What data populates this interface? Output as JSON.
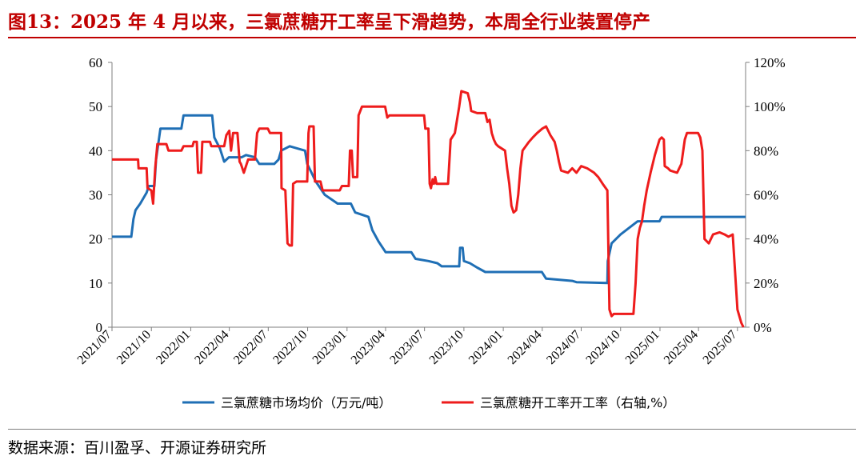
{
  "title": "图13：2025 年 4 月以来，三氯蔗糖开工率呈下滑趋势，本周全行业装置停产",
  "source": "数据来源：百川盈孚、开源证券研究所",
  "colors": {
    "title": "#c00000",
    "price": "#1f6fb5",
    "rate": "#ee1c1c",
    "axis": "#7f7f7f"
  },
  "chart_data": {
    "type": "line",
    "title": "",
    "xlabel": "",
    "ylabel": "",
    "y2label": "",
    "x_ticks": [
      "2021/07",
      "2021/10",
      "2022/01",
      "2022/04",
      "2022/07",
      "2022/10",
      "2023/01",
      "2023/04",
      "2023/07",
      "2023/10",
      "2024/01",
      "2024/04",
      "2024/07",
      "2024/10",
      "2025/01",
      "2025/04",
      "2025/07"
    ],
    "xlim": [
      "2021/07/01",
      "2025/07/20"
    ],
    "y_left": {
      "ticks": [
        "0",
        "10",
        "20",
        "30",
        "40",
        "50",
        "60"
      ],
      "ylim": [
        0,
        60
      ]
    },
    "y_right": {
      "ticks": [
        "0%",
        "20%",
        "40%",
        "60%",
        "80%",
        "100%",
        "120%"
      ],
      "ylim": [
        0,
        120
      ]
    },
    "grid": false,
    "legend": "bottom",
    "series": [
      {
        "name": "三氯蔗糖市场均价（万元/吨）",
        "axis": "left",
        "points": [
          [
            "2021-07-01",
            20.5
          ],
          [
            "2021-08-15",
            20.5
          ],
          [
            "2021-08-20",
            24.5
          ],
          [
            "2021-08-25",
            26.5
          ],
          [
            "2021-09-05",
            28
          ],
          [
            "2021-09-20",
            30.5
          ],
          [
            "2021-09-25",
            32
          ],
          [
            "2021-10-08",
            32
          ],
          [
            "2021-10-12",
            38
          ],
          [
            "2021-10-22",
            45
          ],
          [
            "2021-12-10",
            45
          ],
          [
            "2021-12-15",
            48
          ],
          [
            "2022-02-20",
            48
          ],
          [
            "2022-02-25",
            43
          ],
          [
            "2022-03-10",
            40.5
          ],
          [
            "2022-03-20",
            37.5
          ],
          [
            "2022-03-31",
            38.5
          ],
          [
            "2022-04-30",
            38.5
          ],
          [
            "2022-05-10",
            39
          ],
          [
            "2022-05-31",
            38.5
          ],
          [
            "2022-06-10",
            37
          ],
          [
            "2022-07-15",
            37
          ],
          [
            "2022-07-25",
            38
          ],
          [
            "2022-07-31",
            40
          ],
          [
            "2022-08-20",
            41
          ],
          [
            "2022-09-25",
            40
          ],
          [
            "2022-09-30",
            37
          ],
          [
            "2022-10-10",
            35
          ],
          [
            "2022-10-20",
            33
          ],
          [
            "2022-11-10",
            30
          ],
          [
            "2022-12-10",
            28
          ],
          [
            "2023-01-10",
            28
          ],
          [
            "2023-01-20",
            26
          ],
          [
            "2023-02-20",
            25
          ],
          [
            "2023-03-01",
            22
          ],
          [
            "2023-03-15",
            19.5
          ],
          [
            "2023-04-01",
            17
          ],
          [
            "2023-05-31",
            17
          ],
          [
            "2023-06-10",
            15.5
          ],
          [
            "2023-07-10",
            15
          ],
          [
            "2023-07-31",
            14.5
          ],
          [
            "2023-08-10",
            13.8
          ],
          [
            "2023-09-20",
            13.8
          ],
          [
            "2023-09-22",
            18
          ],
          [
            "2023-09-28",
            18
          ],
          [
            "2023-10-01",
            15
          ],
          [
            "2023-10-15",
            14.5
          ],
          [
            "2023-11-01",
            13.5
          ],
          [
            "2023-11-20",
            12.5
          ],
          [
            "2024-03-31",
            12.5
          ],
          [
            "2024-04-10",
            11
          ],
          [
            "2024-06-10",
            10.5
          ],
          [
            "2024-06-20",
            10.2
          ],
          [
            "2024-08-31",
            10
          ],
          [
            "2024-09-01",
            15
          ],
          [
            "2024-09-10",
            19
          ],
          [
            "2024-10-01",
            21
          ],
          [
            "2024-11-10",
            24
          ],
          [
            "2024-12-31",
            24
          ],
          [
            "2025-01-05",
            25
          ],
          [
            "2025-07-20",
            25
          ]
        ]
      },
      {
        "name": "三氯蔗糖开工率开工率（右轴,%）",
        "axis": "right",
        "points": [
          [
            "2021-07-01",
            76
          ],
          [
            "2021-08-31",
            76
          ],
          [
            "2021-09-01",
            72
          ],
          [
            "2021-09-20",
            72
          ],
          [
            "2021-09-22",
            63
          ],
          [
            "2021-10-01",
            62
          ],
          [
            "2021-10-05",
            56
          ],
          [
            "2021-10-10",
            72
          ],
          [
            "2021-10-15",
            83
          ],
          [
            "2021-11-05",
            83
          ],
          [
            "2021-11-10",
            80
          ],
          [
            "2021-12-10",
            80
          ],
          [
            "2021-12-15",
            82
          ],
          [
            "2022-01-05",
            82
          ],
          [
            "2022-01-08",
            84
          ],
          [
            "2022-01-15",
            84
          ],
          [
            "2022-01-18",
            70
          ],
          [
            "2022-01-25",
            70
          ],
          [
            "2022-01-28",
            84
          ],
          [
            "2022-02-15",
            84
          ],
          [
            "2022-02-18",
            82
          ],
          [
            "2022-03-20",
            82
          ],
          [
            "2022-03-25",
            87
          ],
          [
            "2022-04-01",
            89
          ],
          [
            "2022-04-05",
            80
          ],
          [
            "2022-04-10",
            88
          ],
          [
            "2022-04-20",
            88
          ],
          [
            "2022-04-25",
            75
          ],
          [
            "2022-04-28",
            74
          ],
          [
            "2022-05-05",
            70
          ],
          [
            "2022-05-15",
            76
          ],
          [
            "2022-05-31",
            76
          ],
          [
            "2022-06-05",
            88
          ],
          [
            "2022-06-10",
            90
          ],
          [
            "2022-06-30",
            90
          ],
          [
            "2022-07-05",
            88
          ],
          [
            "2022-07-31",
            88
          ],
          [
            "2022-08-01",
            63
          ],
          [
            "2022-08-10",
            62
          ],
          [
            "2022-08-15",
            38
          ],
          [
            "2022-08-20",
            37
          ],
          [
            "2022-08-25",
            37
          ],
          [
            "2022-08-28",
            65
          ],
          [
            "2022-09-05",
            66
          ],
          [
            "2022-09-30",
            66
          ],
          [
            "2022-10-03",
            88
          ],
          [
            "2022-10-05",
            91
          ],
          [
            "2022-10-15",
            91
          ],
          [
            "2022-10-18",
            66
          ],
          [
            "2022-10-31",
            66
          ],
          [
            "2022-11-05",
            62
          ],
          [
            "2022-12-15",
            62
          ],
          [
            "2022-12-20",
            64
          ],
          [
            "2023-01-05",
            64
          ],
          [
            "2023-01-08",
            80
          ],
          [
            "2023-01-12",
            80
          ],
          [
            "2023-01-15",
            68
          ],
          [
            "2023-01-25",
            68
          ],
          [
            "2023-01-28",
            96
          ],
          [
            "2023-02-05",
            100
          ],
          [
            "2023-03-31",
            100
          ],
          [
            "2023-04-05",
            95
          ],
          [
            "2023-04-10",
            96
          ],
          [
            "2023-06-30",
            96
          ],
          [
            "2023-07-03",
            90
          ],
          [
            "2023-07-10",
            90
          ],
          [
            "2023-07-13",
            65
          ],
          [
            "2023-07-16",
            63
          ],
          [
            "2023-07-20",
            67
          ],
          [
            "2023-07-23",
            65
          ],
          [
            "2023-07-26",
            68
          ],
          [
            "2023-07-29",
            65
          ],
          [
            "2023-08-25",
            65
          ],
          [
            "2023-08-31",
            85
          ],
          [
            "2023-09-10",
            88
          ],
          [
            "2023-09-20",
            100
          ],
          [
            "2023-09-25",
            107
          ],
          [
            "2023-10-10",
            106
          ],
          [
            "2023-10-15",
            102
          ],
          [
            "2023-10-18",
            98
          ],
          [
            "2023-11-01",
            97
          ],
          [
            "2023-11-20",
            97
          ],
          [
            "2023-11-25",
            93
          ],
          [
            "2023-11-30",
            94
          ],
          [
            "2023-12-05",
            88
          ],
          [
            "2023-12-10",
            85
          ],
          [
            "2023-12-15",
            83
          ],
          [
            "2023-12-20",
            82
          ],
          [
            "2024-01-05",
            80
          ],
          [
            "2024-01-10",
            72
          ],
          [
            "2024-01-15",
            65
          ],
          [
            "2024-01-20",
            55
          ],
          [
            "2024-01-25",
            52
          ],
          [
            "2024-01-31",
            53
          ],
          [
            "2024-02-05",
            60
          ],
          [
            "2024-02-10",
            72
          ],
          [
            "2024-02-15",
            80
          ],
          [
            "2024-03-01",
            84
          ],
          [
            "2024-03-10",
            86
          ],
          [
            "2024-03-20",
            88
          ],
          [
            "2024-04-01",
            90
          ],
          [
            "2024-04-10",
            91
          ],
          [
            "2024-04-20",
            87
          ],
          [
            "2024-04-30",
            84
          ],
          [
            "2024-05-05",
            80
          ],
          [
            "2024-05-10",
            75
          ],
          [
            "2024-05-15",
            71
          ],
          [
            "2024-05-31",
            70
          ],
          [
            "2024-06-10",
            72
          ],
          [
            "2024-06-20",
            70
          ],
          [
            "2024-07-01",
            73
          ],
          [
            "2024-07-15",
            72
          ],
          [
            "2024-07-31",
            70
          ],
          [
            "2024-08-10",
            68
          ],
          [
            "2024-08-20",
            65
          ],
          [
            "2024-08-31",
            62
          ],
          [
            "2024-09-05",
            8
          ],
          [
            "2024-09-10",
            5
          ],
          [
            "2024-09-15",
            6
          ],
          [
            "2024-10-31",
            6
          ],
          [
            "2024-11-05",
            20
          ],
          [
            "2024-11-10",
            40
          ],
          [
            "2024-11-15",
            45
          ],
          [
            "2024-11-20",
            48
          ],
          [
            "2024-11-25",
            55
          ],
          [
            "2024-12-01",
            62
          ],
          [
            "2024-12-10",
            70
          ],
          [
            "2024-12-20",
            78
          ],
          [
            "2024-12-31",
            85
          ],
          [
            "2025-01-05",
            86
          ],
          [
            "2025-01-10",
            85
          ],
          [
            "2025-01-12",
            73
          ],
          [
            "2025-01-20",
            72
          ],
          [
            "2025-01-25",
            71
          ],
          [
            "2025-02-10",
            70
          ],
          [
            "2025-02-20",
            74
          ],
          [
            "2025-02-28",
            85
          ],
          [
            "2025-03-05",
            88
          ],
          [
            "2025-03-31",
            88
          ],
          [
            "2025-04-05",
            86
          ],
          [
            "2025-04-10",
            80
          ],
          [
            "2025-04-15",
            40
          ],
          [
            "2025-04-25",
            38
          ],
          [
            "2025-05-05",
            42
          ],
          [
            "2025-05-20",
            43
          ],
          [
            "2025-06-01",
            42
          ],
          [
            "2025-06-10",
            41
          ],
          [
            "2025-06-20",
            42
          ],
          [
            "2025-07-01",
            8
          ],
          [
            "2025-07-10",
            2
          ],
          [
            "2025-07-15",
            0
          ]
        ]
      }
    ]
  }
}
